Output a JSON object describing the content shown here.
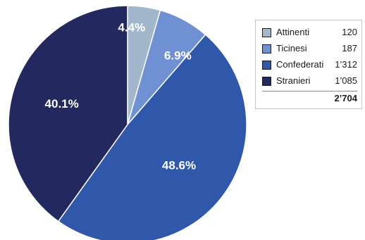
{
  "chart_data": {
    "type": "pie",
    "slices": [
      {
        "name": "Attinenti",
        "value": 120,
        "label": "4.4%",
        "color": "#a3b7cc"
      },
      {
        "name": "Ticinesi",
        "value": 187,
        "label": "6.9%",
        "color": "#6f91d3"
      },
      {
        "name": "Confederati",
        "value": 1312,
        "label": "48.6%",
        "color": "#2f58aa"
      },
      {
        "name": "Stranieri",
        "value": 1085,
        "label": "40.1%",
        "color": "#23285f"
      }
    ],
    "legend": {
      "placement": "top-right",
      "entries": [
        {
          "name": "Attinenti",
          "value": "120"
        },
        {
          "name": "Ticinesi",
          "value": "187"
        },
        {
          "name": "Confederati",
          "value": "1’312"
        },
        {
          "name": "Stranieri",
          "value": "1’085"
        }
      ],
      "total": "2’704"
    }
  }
}
